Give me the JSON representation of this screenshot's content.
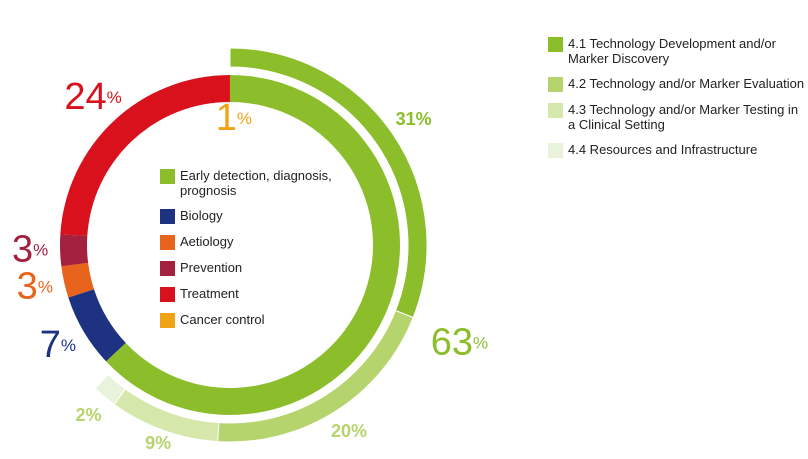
{
  "chart_data": {
    "type": "donut",
    "categories": [
      "Early detection, diagnosis, prognosis",
      "Biology",
      "Aetiology",
      "Prevention",
      "Treatment",
      "Cancer control"
    ],
    "values": [
      63,
      7,
      3,
      3,
      24,
      1
    ],
    "value_labels": [
      "63%",
      "7%",
      "3%",
      "3%",
      "24%",
      "1%"
    ],
    "colors": [
      "#8cbd2a",
      "#1e3282",
      "#e8641c",
      "#a3203f",
      "#d8111d",
      "#f0a314"
    ],
    "breakdown": {
      "categories": [
        "4.1 Technology Development and/or Marker Discovery",
        "4.2 Technology and/or Marker Evaluation",
        "4.3 Technology and/or Marker Testing in a Clinical Setting",
        "4.4 Resources and Infrastructure"
      ],
      "values": [
        31,
        20,
        9,
        2
      ],
      "value_labels": [
        "31%",
        "20%",
        "9%",
        "2%"
      ],
      "colors": [
        "#8cbd2a",
        "#b5d46e",
        "#d5e7ab",
        "#e9f2da"
      ]
    }
  }
}
